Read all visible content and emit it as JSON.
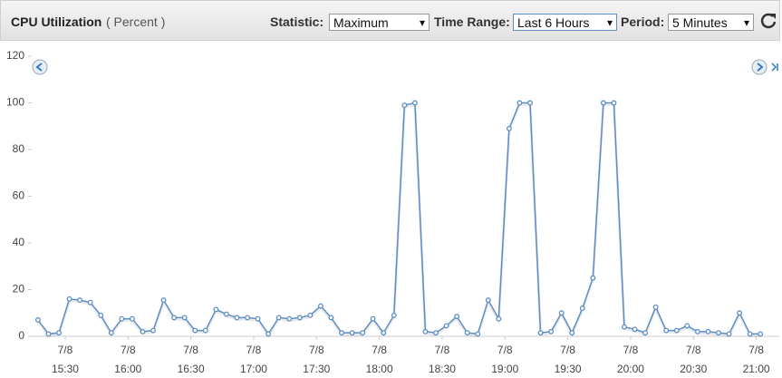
{
  "toolbar": {
    "title": "CPU Utilization",
    "unit": "( Percent )",
    "statistic_label": "Statistic:",
    "statistic": "Maximum",
    "time_range_label": "Time Range:",
    "time_range": "Last 6 Hours",
    "period_label": "Period:",
    "period": "5 Minutes"
  },
  "chart_data": {
    "type": "line",
    "color": "#5b8ec5",
    "grid": false,
    "x": [
      "7/8 15:17",
      "7/8 15:22",
      "7/8 15:27",
      "7/8 15:32",
      "7/8 15:37",
      "7/8 15:42",
      "7/8 15:47",
      "7/8 15:52",
      "7/8 15:57",
      "7/8 16:02",
      "7/8 16:07",
      "7/8 16:12",
      "7/8 16:17",
      "7/8 16:22",
      "7/8 16:27",
      "7/8 16:32",
      "7/8 16:37",
      "7/8 16:42",
      "7/8 16:47",
      "7/8 16:52",
      "7/8 16:57",
      "7/8 17:02",
      "7/8 17:07",
      "7/8 17:12",
      "7/8 17:17",
      "7/8 17:22",
      "7/8 17:27",
      "7/8 17:32",
      "7/8 17:37",
      "7/8 17:42",
      "7/8 17:47",
      "7/8 17:52",
      "7/8 17:57",
      "7/8 18:02",
      "7/8 18:07",
      "7/8 18:12",
      "7/8 18:17",
      "7/8 18:22",
      "7/8 18:27",
      "7/8 18:32",
      "7/8 18:37",
      "7/8 18:42",
      "7/8 18:47",
      "7/8 18:52",
      "7/8 18:57",
      "7/8 19:02",
      "7/8 19:07",
      "7/8 19:12",
      "7/8 19:17",
      "7/8 19:22",
      "7/8 19:27",
      "7/8 19:32",
      "7/8 19:37",
      "7/8 19:42",
      "7/8 19:47",
      "7/8 19:52",
      "7/8 19:57",
      "7/8 20:02",
      "7/8 20:07",
      "7/8 20:12",
      "7/8 20:17",
      "7/8 20:22",
      "7/8 20:27",
      "7/8 20:32",
      "7/8 20:37",
      "7/8 20:42",
      "7/8 20:47",
      "7/8 20:52",
      "7/8 20:57",
      "7/8 21:02"
    ],
    "values": [
      7,
      1,
      1.5,
      16,
      15.5,
      14.5,
      9,
      1.5,
      7.5,
      7.5,
      2,
      2.5,
      15.5,
      8,
      8,
      2.5,
      2.5,
      11.5,
      9.5,
      8,
      8,
      7.5,
      1,
      8,
      7.5,
      8,
      9,
      13,
      8,
      1.5,
      1.5,
      1.5,
      7.5,
      1.5,
      9,
      99,
      100,
      2,
      1.5,
      4.5,
      8.5,
      1.5,
      1,
      15.5,
      7.5,
      89,
      100,
      100,
      1.5,
      2,
      10,
      1.5,
      12,
      25,
      100,
      100,
      4,
      3,
      1.5,
      12.5,
      2.5,
      2.5,
      4.5,
      2,
      2,
      1.5,
      1,
      10,
      1,
      1
    ],
    "xlim": [
      "7/8 15:14",
      "7/8 21:11"
    ],
    "xticks": [
      {
        "date": "7/8",
        "time": "15:30"
      },
      {
        "date": "7/8",
        "time": "16:00"
      },
      {
        "date": "7/8",
        "time": "16:30"
      },
      {
        "date": "7/8",
        "time": "17:00"
      },
      {
        "date": "7/8",
        "time": "17:30"
      },
      {
        "date": "7/8",
        "time": "18:00"
      },
      {
        "date": "7/8",
        "time": "18:30"
      },
      {
        "date": "7/8",
        "time": "19:00"
      },
      {
        "date": "7/8",
        "time": "19:30"
      },
      {
        "date": "7/8",
        "time": "20:00"
      },
      {
        "date": "7/8",
        "time": "20:30"
      },
      {
        "date": "7/8",
        "time": "21:00"
      }
    ],
    "ylim": [
      0,
      120
    ],
    "yticks": [
      0,
      20,
      40,
      60,
      80,
      100,
      120
    ]
  }
}
